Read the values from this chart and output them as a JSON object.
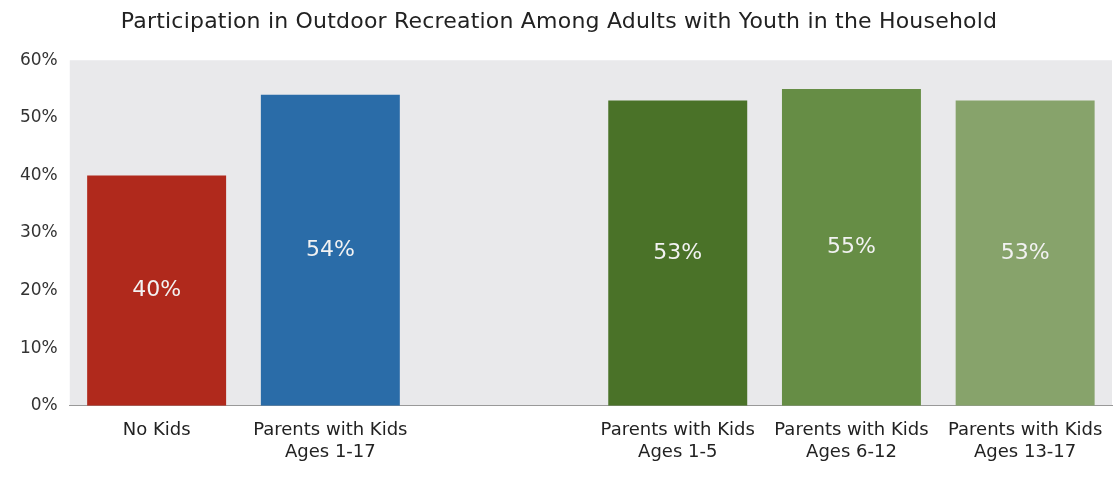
{
  "chart_data": {
    "type": "bar",
    "title": "Participation in Outdoor Recreation Among Adults with Youth in the Household",
    "categories": [
      "No Kids",
      "Parents with Kids\nAges 1-17",
      null,
      "Parents with Kids\nAges 1-5",
      "Parents with Kids\nAges 6-12",
      "Parents with Kids\nAges 13-17"
    ],
    "values": [
      40,
      54,
      null,
      53,
      55,
      53
    ],
    "colors": [
      "#b0291c",
      "#2a6ca8",
      "#888888",
      "#4a7228",
      "#668d45",
      "#87a36b"
    ],
    "ylim": [
      0,
      60
    ],
    "yticks": [
      {
        "value": 0,
        "label": "0%"
      },
      {
        "value": 10,
        "label": "10%"
      },
      {
        "value": 20,
        "label": "20%"
      },
      {
        "value": 30,
        "label": "30%"
      },
      {
        "value": 40,
        "label": "40%"
      },
      {
        "value": 50,
        "label": "50%"
      },
      {
        "value": 60,
        "label": "60%"
      }
    ],
    "value_labels": [
      "40%",
      "54%",
      null,
      "53%",
      "55%",
      "53%"
    ],
    "grid": false,
    "legend": false
  }
}
